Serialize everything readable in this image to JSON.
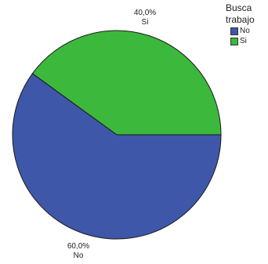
{
  "chart_data": {
    "type": "pie",
    "legend_title": [
      "Busca",
      "trabajo"
    ],
    "categories": [
      "No",
      "Si"
    ],
    "values": [
      60.0,
      40.0
    ],
    "data_labels": [
      {
        "percent": "60,0%",
        "category": "No"
      },
      {
        "percent": "40,0%",
        "category": "Si"
      }
    ],
    "colors": [
      "#3f57a8",
      "#3cb83c"
    ],
    "legend_position": "top-right",
    "start_angle_note": "Si slice spans from 3 o'clock counterclockwise past 12 o'clock"
  }
}
